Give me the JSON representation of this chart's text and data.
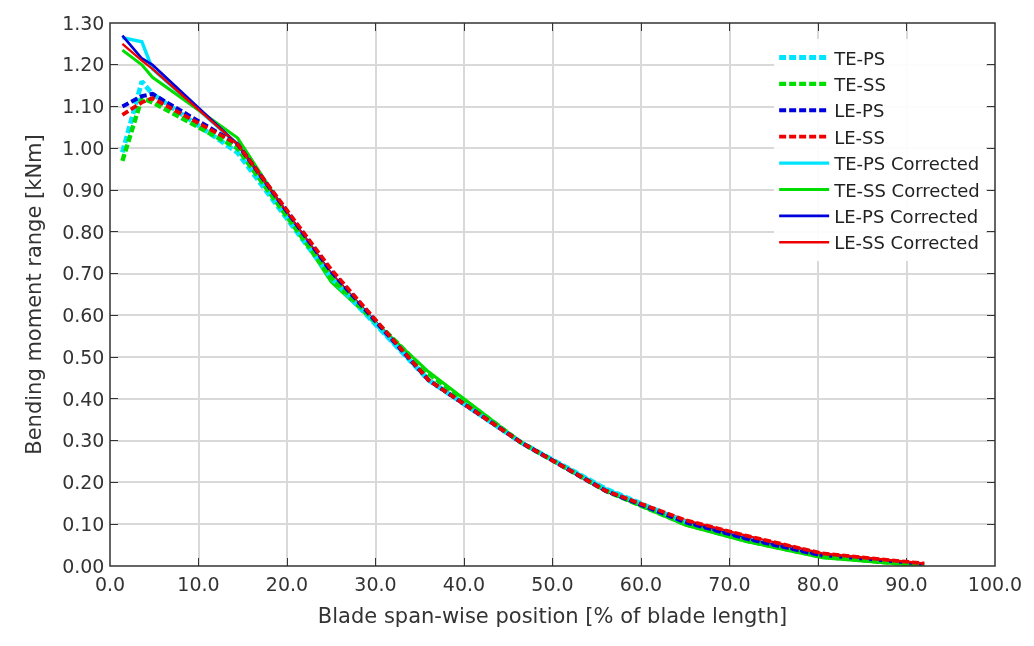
{
  "chart_data": {
    "type": "line",
    "xlabel": "Blade span-wise position [% of blade length]",
    "ylabel": "Bending moment range [kNm]",
    "x": [
      1.4,
      3.6,
      4.8,
      14.4,
      25,
      36,
      46.5,
      56,
      65,
      72,
      80.5,
      92
    ],
    "xlim": [
      0,
      100
    ],
    "xticks": [
      {
        "value": 0,
        "label": "0.0"
      },
      {
        "value": 10,
        "label": "10.0"
      },
      {
        "value": 20,
        "label": "20.0"
      },
      {
        "value": 30,
        "label": "30.0"
      },
      {
        "value": 40,
        "label": "40.0"
      },
      {
        "value": 50,
        "label": "50.0"
      },
      {
        "value": 60,
        "label": "60.0"
      },
      {
        "value": 70,
        "label": "70.0"
      },
      {
        "value": 80,
        "label": "80.0"
      },
      {
        "value": 90,
        "label": "90.0"
      },
      {
        "value": 100,
        "label": "100.0"
      }
    ],
    "ylim": [
      0,
      1.3
    ],
    "yticks": [
      {
        "value": 0,
        "label": "0.00"
      },
      {
        "value": 0.1,
        "label": "0.10"
      },
      {
        "value": 0.2,
        "label": "0.20"
      },
      {
        "value": 0.3,
        "label": "0.30"
      },
      {
        "value": 0.4,
        "label": "0.40"
      },
      {
        "value": 0.5,
        "label": "0.50"
      },
      {
        "value": 0.6,
        "label": "0.60"
      },
      {
        "value": 0.7,
        "label": "0.70"
      },
      {
        "value": 0.8,
        "label": "0.80"
      },
      {
        "value": 0.9,
        "label": "0.90"
      },
      {
        "value": 1.0,
        "label": "1.00"
      },
      {
        "value": 1.1,
        "label": "1.10"
      },
      {
        "value": 1.2,
        "label": "1.20"
      },
      {
        "value": 1.3,
        "label": "1.30"
      }
    ],
    "grid": true,
    "legend": "top right",
    "series": [
      {
        "name": "TE-PS",
        "color": "#00e5ff",
        "line_style": "dashed",
        "values": [
          0.99,
          1.16,
          1.13,
          0.99,
          0.69,
          0.445,
          0.295,
          0.185,
          0.105,
          null,
          null,
          null
        ]
      },
      {
        "name": "TE-SS",
        "color": "#00dd00",
        "line_style": "dashed",
        "values": [
          0.97,
          1.12,
          1.11,
          1.0,
          0.69,
          0.46,
          0.295,
          0.18,
          0.1,
          0.06,
          0.022,
          0.001
        ]
      },
      {
        "name": "LE-PS",
        "color": "#0000dd",
        "line_style": "dashed",
        "values": [
          1.1,
          1.125,
          1.13,
          1.01,
          0.705,
          0.445,
          0.295,
          0.18,
          0.105,
          0.065,
          0.025,
          null
        ]
      },
      {
        "name": "LE-SS",
        "color": "#ee0000",
        "line_style": "dashed",
        "values": [
          1.08,
          1.11,
          1.12,
          1.01,
          0.71,
          0.445,
          0.295,
          0.18,
          0.11,
          0.072,
          0.03,
          0.006
        ]
      },
      {
        "name": "TE-PS Corrected",
        "color": "#00e5ff",
        "line_style": "solid",
        "values": [
          1.265,
          1.255,
          1.19,
          1.01,
          0.69,
          0.445,
          0.295,
          0.185,
          0.105,
          null,
          null,
          null
        ]
      },
      {
        "name": "TE-SS Corrected",
        "color": "#00dd00",
        "line_style": "solid",
        "values": [
          1.235,
          1.2,
          1.17,
          1.025,
          0.68,
          0.465,
          0.295,
          0.18,
          0.098,
          0.058,
          0.02,
          0.0
        ]
      },
      {
        "name": "LE-PS Corrected",
        "color": "#0000dd",
        "line_style": "solid",
        "values": [
          1.27,
          1.215,
          1.2,
          1.01,
          0.7,
          0.445,
          0.295,
          0.18,
          0.105,
          0.065,
          0.025,
          0.004
        ]
      },
      {
        "name": "LE-SS Corrected",
        "color": "#ee0000",
        "line_style": "solid",
        "values": [
          1.25,
          1.21,
          1.19,
          1.01,
          0.7,
          0.445,
          0.295,
          0.18,
          0.11,
          0.072,
          0.03,
          0.006
        ]
      }
    ]
  }
}
